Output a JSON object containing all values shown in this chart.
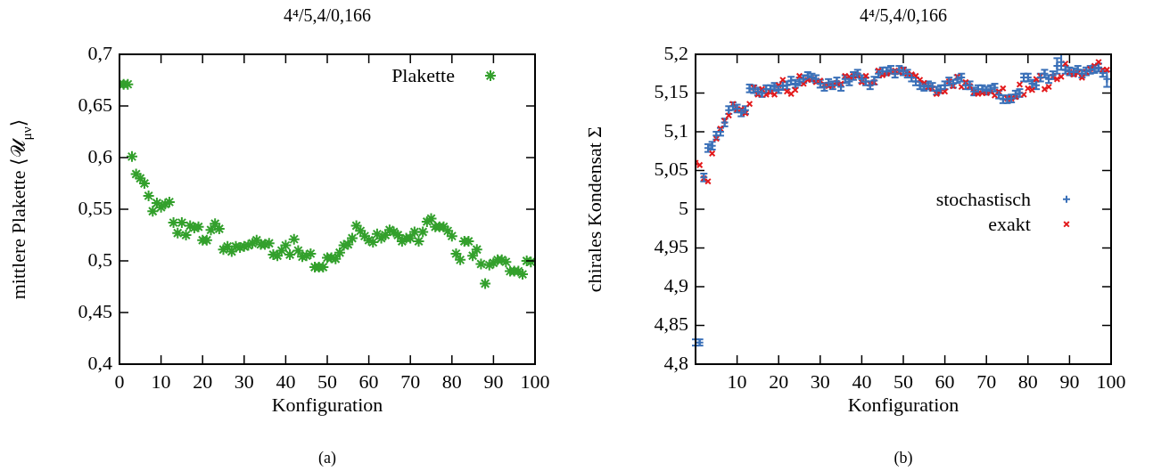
{
  "chart_data": [
    {
      "type": "scatter",
      "title": "4⁴/5,4/0,166",
      "xlabel": "Konfiguration",
      "ylabel": "mittlere Plakette ⟨𝒰$_{μν}$⟩",
      "annotations": [
        "(a)"
      ],
      "legend": "top right",
      "xlim": [
        0,
        100
      ],
      "xticks": [
        0,
        10,
        20,
        30,
        40,
        50,
        60,
        70,
        80,
        90,
        100
      ],
      "ylim": [
        0.4,
        0.7
      ],
      "yticks": [
        {
          "value": 0.4,
          "label": "0,4"
        },
        {
          "value": 0.45,
          "label": "0,45"
        },
        {
          "value": 0.5,
          "label": "0,5"
        },
        {
          "value": 0.55,
          "label": "0,55"
        },
        {
          "value": 0.6,
          "label": "0,6"
        },
        {
          "value": 0.65,
          "label": "0,65"
        },
        {
          "value": 0.7,
          "label": "0,7"
        }
      ],
      "x": [
        0,
        1,
        2,
        3,
        4,
        5,
        6,
        7,
        8,
        9,
        10,
        11,
        12,
        13,
        14,
        15,
        16,
        17,
        18,
        19,
        20,
        21,
        22,
        23,
        24,
        25,
        26,
        27,
        28,
        29,
        30,
        31,
        32,
        33,
        34,
        35,
        36,
        37,
        38,
        39,
        40,
        41,
        42,
        43,
        44,
        45,
        46,
        47,
        48,
        49,
        50,
        51,
        52,
        53,
        54,
        55,
        56,
        57,
        58,
        59,
        60,
        61,
        62,
        63,
        64,
        65,
        66,
        67,
        68,
        69,
        70,
        71,
        72,
        73,
        74,
        75,
        76,
        77,
        78,
        79,
        80,
        81,
        82,
        83,
        84,
        85,
        86,
        87,
        88,
        89,
        90,
        91,
        92,
        93,
        94,
        95,
        96,
        97,
        98,
        99
      ],
      "series": [
        {
          "name": "Plakette",
          "color": "#33a02c",
          "values": [
            0.671,
            0.671,
            0.671,
            0.601,
            0.584,
            0.58,
            0.575,
            0.563,
            0.548,
            0.556,
            0.552,
            0.555,
            0.557,
            0.537,
            0.527,
            0.537,
            0.525,
            0.534,
            0.532,
            0.533,
            0.52,
            0.52,
            0.53,
            0.536,
            0.531,
            0.511,
            0.514,
            0.509,
            0.514,
            0.513,
            0.514,
            0.515,
            0.517,
            0.52,
            0.516,
            0.516,
            0.517,
            0.506,
            0.505,
            0.51,
            0.515,
            0.506,
            0.521,
            0.51,
            0.504,
            0.505,
            0.507,
            0.494,
            0.494,
            0.494,
            0.503,
            0.503,
            0.502,
            0.508,
            0.515,
            0.516,
            0.522,
            0.534,
            0.529,
            0.524,
            0.52,
            0.518,
            0.526,
            0.522,
            0.525,
            0.53,
            0.528,
            0.525,
            0.519,
            0.522,
            0.522,
            0.528,
            0.519,
            0.528,
            0.538,
            0.541,
            0.533,
            0.533,
            0.533,
            0.529,
            0.524,
            0.507,
            0.501,
            0.519,
            0.519,
            0.505,
            0.511,
            0.497,
            0.478,
            0.496,
            0.498,
            0.501,
            0.501,
            0.499,
            0.49,
            0.49,
            0.49,
            0.487,
            0.5,
            0.499
          ]
        }
      ]
    },
    {
      "type": "scatter",
      "title": "4⁴/5,4/0,166",
      "xlabel": "Konfiguration",
      "ylabel": "chirales Kondensat Σ",
      "annotations": [
        "(b)"
      ],
      "legend": "right",
      "xlim": [
        0,
        100
      ],
      "xticks": [
        10,
        20,
        30,
        40,
        50,
        60,
        70,
        80,
        90,
        100
      ],
      "ylim": [
        4.8,
        5.2
      ],
      "yticks": [
        {
          "value": 4.8,
          "label": "4,8"
        },
        {
          "value": 4.85,
          "label": "4,85"
        },
        {
          "value": 4.9,
          "label": "4,9"
        },
        {
          "value": 4.95,
          "label": "4,95"
        },
        {
          "value": 5,
          "label": "5"
        },
        {
          "value": 5.05,
          "label": "5,05"
        },
        {
          "value": 5.1,
          "label": "5,1"
        },
        {
          "value": 5.15,
          "label": "5,15"
        },
        {
          "value": 5.2,
          "label": "5,2"
        }
      ],
      "x": [
        0,
        1,
        2,
        3,
        4,
        5,
        6,
        7,
        8,
        9,
        10,
        11,
        12,
        13,
        14,
        15,
        16,
        17,
        18,
        19,
        20,
        21,
        22,
        23,
        24,
        25,
        26,
        27,
        28,
        29,
        30,
        31,
        32,
        33,
        34,
        35,
        36,
        37,
        38,
        39,
        40,
        41,
        42,
        43,
        44,
        45,
        46,
        47,
        48,
        49,
        50,
        51,
        52,
        53,
        54,
        55,
        56,
        57,
        58,
        59,
        60,
        61,
        62,
        63,
        64,
        65,
        66,
        67,
        68,
        69,
        70,
        71,
        72,
        73,
        74,
        75,
        76,
        77,
        78,
        79,
        80,
        81,
        82,
        83,
        84,
        85,
        86,
        87,
        88,
        89,
        90,
        91,
        92,
        93,
        94,
        95,
        96,
        97,
        98,
        99
      ],
      "series": [
        {
          "name": "stochastisch",
          "color": "#3a70b8",
          "marker": "cross",
          "values": [
            4.828,
            4.828,
            5.041,
            5.079,
            5.082,
            5.095,
            5.1,
            5.112,
            5.128,
            5.133,
            5.13,
            5.125,
            5.128,
            5.156,
            5.155,
            5.152,
            5.15,
            5.155,
            5.155,
            5.158,
            5.155,
            5.159,
            5.16,
            5.166,
            5.162,
            5.165,
            5.168,
            5.172,
            5.17,
            5.168,
            5.162,
            5.158,
            5.163,
            5.16,
            5.165,
            5.158,
            5.168,
            5.165,
            5.172,
            5.175,
            5.168,
            5.165,
            5.16,
            5.166,
            5.175,
            5.178,
            5.178,
            5.18,
            5.175,
            5.18,
            5.178,
            5.175,
            5.17,
            5.165,
            5.16,
            5.158,
            5.16,
            5.158,
            5.153,
            5.155,
            5.16,
            5.165,
            5.162,
            5.168,
            5.17,
            5.16,
            5.16,
            5.152,
            5.155,
            5.155,
            5.153,
            5.155,
            5.157,
            5.148,
            5.142,
            5.142,
            5.143,
            5.148,
            5.15,
            5.17,
            5.17,
            5.162,
            5.16,
            5.17,
            5.175,
            5.168,
            5.173,
            5.185,
            5.19,
            5.18,
            5.178,
            5.177,
            5.18,
            5.175,
            5.178,
            5.18,
            5.181,
            5.183,
            5.176,
            5.168
          ],
          "errors": [
            0.004,
            0.004,
            0.005,
            0.005,
            0.005,
            0.005,
            0.005,
            0.005,
            0.005,
            0.005,
            0.005,
            0.005,
            0.005,
            0.005,
            0.005,
            0.005,
            0.005,
            0.005,
            0.005,
            0.005,
            0.005,
            0.005,
            0.005,
            0.005,
            0.005,
            0.005,
            0.005,
            0.005,
            0.005,
            0.005,
            0.005,
            0.005,
            0.005,
            0.005,
            0.005,
            0.005,
            0.005,
            0.005,
            0.005,
            0.005,
            0.005,
            0.005,
            0.005,
            0.005,
            0.005,
            0.005,
            0.005,
            0.005,
            0.005,
            0.005,
            0.005,
            0.005,
            0.005,
            0.005,
            0.005,
            0.005,
            0.005,
            0.005,
            0.005,
            0.005,
            0.005,
            0.005,
            0.005,
            0.005,
            0.005,
            0.005,
            0.005,
            0.005,
            0.005,
            0.005,
            0.005,
            0.005,
            0.005,
            0.005,
            0.005,
            0.005,
            0.005,
            0.005,
            0.005,
            0.005,
            0.005,
            0.005,
            0.005,
            0.005,
            0.005,
            0.005,
            0.005,
            0.01,
            0.01,
            0.005,
            0.005,
            0.005,
            0.005,
            0.005,
            0.005,
            0.005,
            0.005,
            0.005,
            0.005,
            0.01
          ]
        },
        {
          "name": "exakt",
          "color": "#e31a1c",
          "marker": "cross",
          "values": [
            5.06,
            5.057,
            5.04,
            5.036,
            5.072,
            5.091,
            5.104,
            5.114,
            5.121,
            5.136,
            5.129,
            5.129,
            5.124,
            5.136,
            5.157,
            5.148,
            5.155,
            5.148,
            5.151,
            5.148,
            5.16,
            5.167,
            5.152,
            5.149,
            5.154,
            5.172,
            5.162,
            5.167,
            5.168,
            5.164,
            5.166,
            5.161,
            5.159,
            5.16,
            5.163,
            5.162,
            5.172,
            5.171,
            5.172,
            5.173,
            5.164,
            5.172,
            5.162,
            5.164,
            5.179,
            5.173,
            5.175,
            5.177,
            5.179,
            5.177,
            5.18,
            5.175,
            5.174,
            5.172,
            5.167,
            5.163,
            5.158,
            5.156,
            5.149,
            5.152,
            5.152,
            5.165,
            5.159,
            5.171,
            5.158,
            5.164,
            5.159,
            5.151,
            5.149,
            5.15,
            5.15,
            5.152,
            5.147,
            5.152,
            5.156,
            5.143,
            5.143,
            5.145,
            5.161,
            5.148,
            5.156,
            5.154,
            5.168,
            5.172,
            5.155,
            5.158,
            5.171,
            5.168,
            5.171,
            5.188,
            5.177,
            5.174,
            5.176,
            5.17,
            5.177,
            5.181,
            5.185,
            5.19,
            5.18,
            5.18
          ]
        }
      ]
    }
  ]
}
